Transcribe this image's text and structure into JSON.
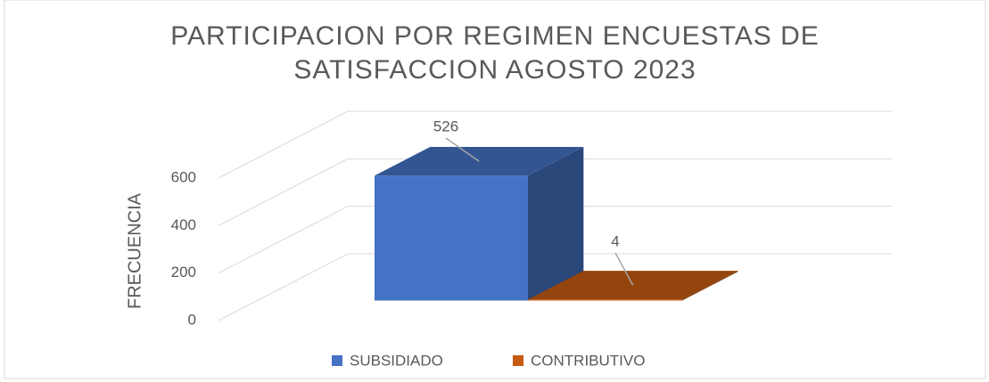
{
  "chart_data": {
    "type": "bar3d",
    "title": "PARTICIPACION POR REGIMEN ENCUESTAS DE SATISFACCION AGOSTO 2023",
    "y_label": "FRECUENCIA",
    "series": [
      {
        "name": "SUBSIDIADO",
        "color": "#4472c4",
        "values": [
          526
        ]
      },
      {
        "name": "CONTRIBUTIVO",
        "color": "#c55a11",
        "values": [
          4
        ]
      }
    ],
    "ylim": [
      0,
      600
    ],
    "yticks": [
      0,
      200,
      400,
      600
    ],
    "grid": true,
    "legend": "bottom"
  }
}
